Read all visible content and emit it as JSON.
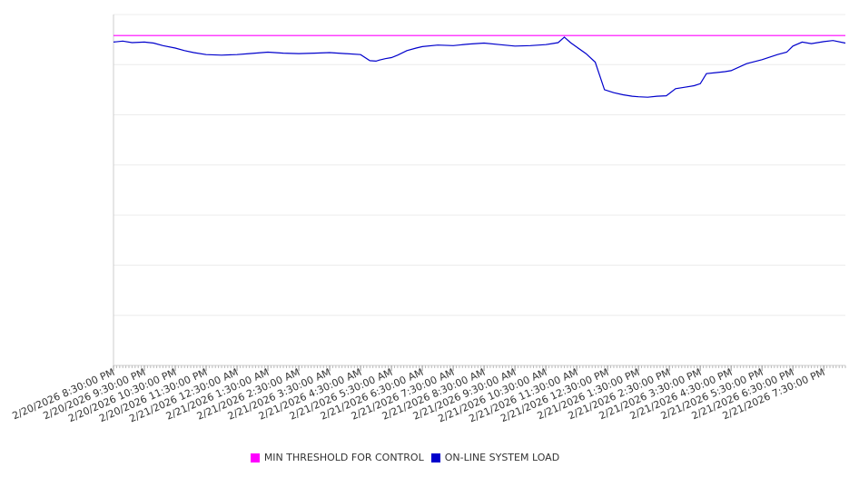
{
  "chart_data": {
    "type": "line",
    "title": "",
    "xlabel": "",
    "ylabel": "",
    "grid": true,
    "y_ticks_labeled": false,
    "legend_position": "bottom",
    "x_tick_labels": [
      "2/20/2026 8:30:00 PM",
      "2/20/2026 9:30:00 PM",
      "2/20/2026 10:30:00 PM",
      "2/20/2026 11:30:00 PM",
      "2/21/2026 12:30:00 AM",
      "2/21/2026 1:30:00 AM",
      "2/21/2026 2:30:00 AM",
      "2/21/2026 3:30:00 AM",
      "2/21/2026 4:30:00 AM",
      "2/21/2026 5:30:00 AM",
      "2/21/2026 6:30:00 AM",
      "2/21/2026 7:30:00 AM",
      "2/21/2026 8:30:00 AM",
      "2/21/2026 9:30:00 AM",
      "2/21/2026 10:30:00 AM",
      "2/21/2026 11:30:00 AM",
      "2/21/2026 12:30:00 PM",
      "2/21/2026 1:30:00 PM",
      "2/21/2026 2:30:00 PM",
      "2/21/2026 3:30:00 PM",
      "2/21/2026 4:30:00 PM",
      "2/21/2026 5:30:00 PM",
      "2/21/2026 6:30:00 PM",
      "2/21/2026 7:30:00 PM"
    ],
    "y_gridlines": 7,
    "ylim": [
      0,
      7
    ],
    "series": [
      {
        "name": "MIN THRESHOLD FOR CONTROL",
        "color": "#ff00ff",
        "x": [
          0,
          23.7
        ],
        "y": [
          6.58,
          6.58
        ]
      },
      {
        "name": "ON-LINE SYSTEM LOAD",
        "color": "#0000cc",
        "x": [
          0,
          0.3,
          0.6,
          1.0,
          1.3,
          1.6,
          2.0,
          2.3,
          2.6,
          3.0,
          3.5,
          4.0,
          4.4,
          5.0,
          5.5,
          6.0,
          6.5,
          7.0,
          7.5,
          8.0,
          8.3,
          8.5,
          8.6,
          8.8,
          9.0,
          9.2,
          9.5,
          9.8,
          10.0,
          10.5,
          11.0,
          11.5,
          12.0,
          12.5,
          13.0,
          13.5,
          14.0,
          14.2,
          14.4,
          14.6,
          14.8,
          15.0,
          15.3,
          15.6,
          15.9,
          16.2,
          16.5,
          16.8,
          17.0,
          17.3,
          17.6,
          17.9,
          18.2,
          18.5,
          18.8,
          19.0,
          19.2,
          19.5,
          19.8,
          20.0,
          20.5,
          21.0,
          21.5,
          21.8,
          22.0,
          22.3,
          22.6,
          23.0,
          23.3,
          23.7
        ],
        "y": [
          6.45,
          6.47,
          6.44,
          6.45,
          6.43,
          6.38,
          6.33,
          6.28,
          6.24,
          6.2,
          6.19,
          6.2,
          6.22,
          6.25,
          6.23,
          6.22,
          6.23,
          6.24,
          6.22,
          6.2,
          6.08,
          6.07,
          6.09,
          6.12,
          6.14,
          6.19,
          6.28,
          6.33,
          6.36,
          6.39,
          6.38,
          6.41,
          6.43,
          6.4,
          6.37,
          6.38,
          6.4,
          6.42,
          6.44,
          6.55,
          6.44,
          6.35,
          6.22,
          6.05,
          5.5,
          5.44,
          5.4,
          5.37,
          5.36,
          5.35,
          5.37,
          5.38,
          5.52,
          5.55,
          5.58,
          5.62,
          5.82,
          5.84,
          5.86,
          5.88,
          6.02,
          6.1,
          6.2,
          6.25,
          6.37,
          6.45,
          6.42,
          6.46,
          6.48,
          6.43
        ]
      }
    ]
  }
}
